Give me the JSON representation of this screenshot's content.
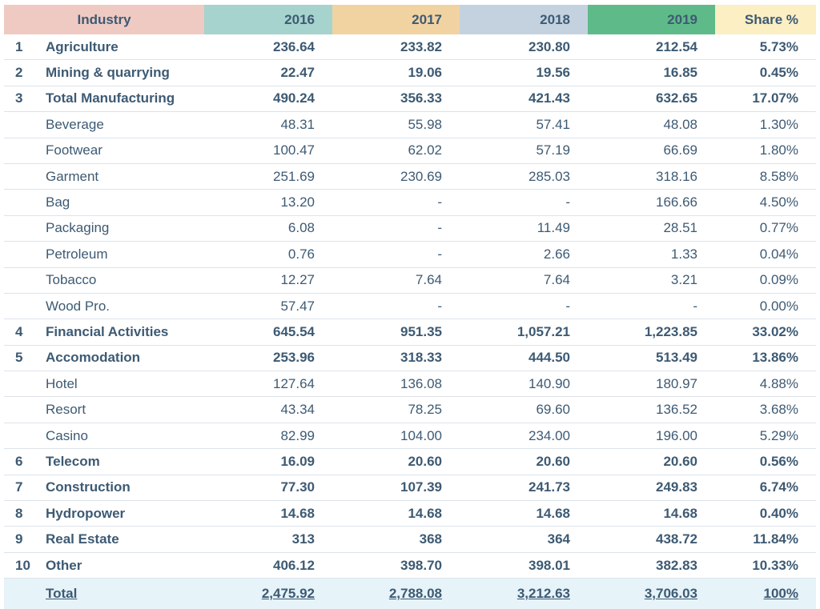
{
  "header": {
    "industry": "Industry",
    "y2016": "2016",
    "y2017": "2017",
    "y2018": "2018",
    "y2019": "2019",
    "share": "Share %"
  },
  "rows": [
    {
      "no": "1",
      "name": "Agriculture",
      "y2016": "236.64",
      "y2017": "233.82",
      "y2018": "230.80",
      "y2019": "212.54",
      "share": "5.73%",
      "bold": true
    },
    {
      "no": "2",
      "name": "Mining & quarrying",
      "y2016": "22.47",
      "y2017": "19.06",
      "y2018": "19.56",
      "y2019": "16.85",
      "share": "0.45%",
      "bold": true
    },
    {
      "no": "3",
      "name": "Total Manufacturing",
      "y2016": "490.24",
      "y2017": "356.33",
      "y2018": "421.43",
      "y2019": "632.65",
      "share": "17.07%",
      "bold": true
    },
    {
      "no": "",
      "name": "Beverage",
      "y2016": "48.31",
      "y2017": "55.98",
      "y2018": "57.41",
      "y2019": "48.08",
      "share": "1.30%",
      "bold": false
    },
    {
      "no": "",
      "name": "Footwear",
      "y2016": "100.47",
      "y2017": "62.02",
      "y2018": "57.19",
      "y2019": "66.69",
      "share": "1.80%",
      "bold": false
    },
    {
      "no": "",
      "name": "Garment",
      "y2016": "251.69",
      "y2017": "230.69",
      "y2018": "285.03",
      "y2019": "318.16",
      "share": "8.58%",
      "bold": false
    },
    {
      "no": "",
      "name": "Bag",
      "y2016": "13.20",
      "y2017": "-",
      "y2018": "-",
      "y2019": "166.66",
      "share": "4.50%",
      "bold": false
    },
    {
      "no": "",
      "name": "Packaging",
      "y2016": "6.08",
      "y2017": "-",
      "y2018": "11.49",
      "y2019": "28.51",
      "share": "0.77%",
      "bold": false
    },
    {
      "no": "",
      "name": "Petroleum",
      "y2016": "0.76",
      "y2017": "-",
      "y2018": "2.66",
      "y2019": "1.33",
      "share": "0.04%",
      "bold": false
    },
    {
      "no": "",
      "name": "Tobacco",
      "y2016": "12.27",
      "y2017": "7.64",
      "y2018": "7.64",
      "y2019": "3.21",
      "share": "0.09%",
      "bold": false
    },
    {
      "no": "",
      "name": "Wood Pro.",
      "y2016": "57.47",
      "y2017": "-",
      "y2018": "-",
      "y2019": "-",
      "share": "0.00%",
      "bold": false
    },
    {
      "no": "4",
      "name": "Financial Activities",
      "y2016": "645.54",
      "y2017": "951.35",
      "y2018": "1,057.21",
      "y2019": "1,223.85",
      "share": "33.02%",
      "bold": true
    },
    {
      "no": "5",
      "name": "Accomodation",
      "y2016": "253.96",
      "y2017": "318.33",
      "y2018": "444.50",
      "y2019": "513.49",
      "share": "13.86%",
      "bold": true
    },
    {
      "no": "",
      "name": "Hotel",
      "y2016": "127.64",
      "y2017": "136.08",
      "y2018": "140.90",
      "y2019": "180.97",
      "share": "4.88%",
      "bold": false
    },
    {
      "no": "",
      "name": "Resort",
      "y2016": "43.34",
      "y2017": "78.25",
      "y2018": "69.60",
      "y2019": "136.52",
      "share": "3.68%",
      "bold": false
    },
    {
      "no": "",
      "name": "Casino",
      "y2016": "82.99",
      "y2017": "104.00",
      "y2018": "234.00",
      "y2019": "196.00",
      "share": "5.29%",
      "bold": false
    },
    {
      "no": "6",
      "name": "Telecom",
      "y2016": "16.09",
      "y2017": "20.60",
      "y2018": "20.60",
      "y2019": "20.60",
      "share": "0.56%",
      "bold": true
    },
    {
      "no": "7",
      "name": "Construction",
      "y2016": "77.30",
      "y2017": "107.39",
      "y2018": "241.73",
      "y2019": "249.83",
      "share": "6.74%",
      "bold": true
    },
    {
      "no": "8",
      "name": "Hydropower",
      "y2016": "14.68",
      "y2017": "14.68",
      "y2018": "14.68",
      "y2019": "14.68",
      "share": "0.40%",
      "bold": true
    },
    {
      "no": "9",
      "name": "Real Estate",
      "y2016": "313",
      "y2017": "368",
      "y2018": "364",
      "y2019": "438.72",
      "share": "11.84%",
      "bold": true
    },
    {
      "no": "10",
      "name": "Other",
      "y2016": "406.12",
      "y2017": "398.70",
      "y2018": "398.01",
      "y2019": "382.83",
      "share": "10.33%",
      "bold": true
    }
  ],
  "total": {
    "name": "Total",
    "y2016": "2,475.92",
    "y2017": "2,788.08",
    "y2018": "3,212.63",
    "y2019": "3,706.03",
    "share": "100%"
  },
  "colors": {
    "text": "#3d5a73",
    "industry_header": "#efcac3",
    "y2016_header": "#a6d3cd",
    "y2017_header": "#f1d3a2",
    "y2018_header": "#c4d2e0",
    "y2019_header": "#5fba89",
    "share_header": "#fbefc3",
    "total_row": "#e6f3f9"
  }
}
